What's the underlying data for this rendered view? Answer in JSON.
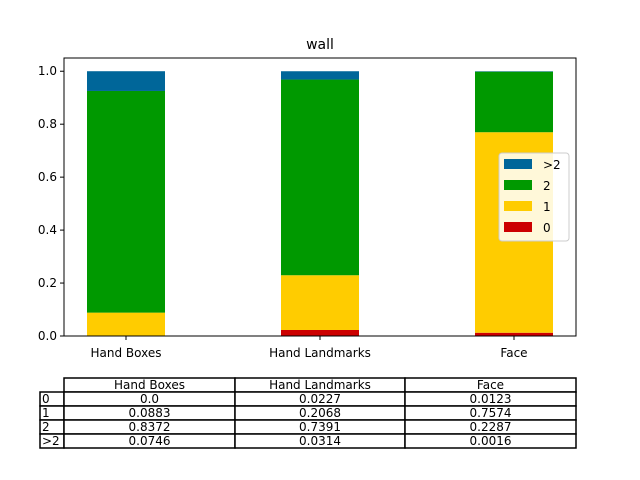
{
  "chart_data": {
    "type": "bar",
    "stacked": true,
    "title": "wall",
    "xlabel": "",
    "ylabel": "",
    "categories": [
      "Hand Boxes",
      "Hand Landmarks",
      "Face"
    ],
    "ylim": [
      0,
      1.05
    ],
    "yticks": [
      "0.0",
      "0.2",
      "0.4",
      "0.6",
      "0.8",
      "1.0"
    ],
    "grid": false,
    "legend_position": "right",
    "series": [
      {
        "name": "0",
        "color": "#cc0000",
        "values": [
          0.0,
          0.0227,
          0.0123
        ]
      },
      {
        "name": "1",
        "color": "#ffcc00",
        "values": [
          0.0883,
          0.2068,
          0.7574
        ]
      },
      {
        "name": "2",
        "color": "#009900",
        "values": [
          0.8372,
          0.7391,
          0.2287
        ]
      },
      {
        "name": ">2",
        "color": "#006699",
        "values": [
          0.0746,
          0.0314,
          0.0016
        ]
      }
    ],
    "table": {
      "col_labels": [
        "Hand Boxes",
        "Hand Landmarks",
        "Face"
      ],
      "row_labels": [
        "0",
        "1",
        "2",
        ">2"
      ],
      "cells": [
        [
          "0.0",
          "0.0227",
          "0.0123"
        ],
        [
          "0.0883",
          "0.2068",
          "0.7574"
        ],
        [
          "0.8372",
          "0.7391",
          "0.2287"
        ],
        [
          "0.0746",
          "0.0314",
          "0.0016"
        ]
      ]
    }
  }
}
